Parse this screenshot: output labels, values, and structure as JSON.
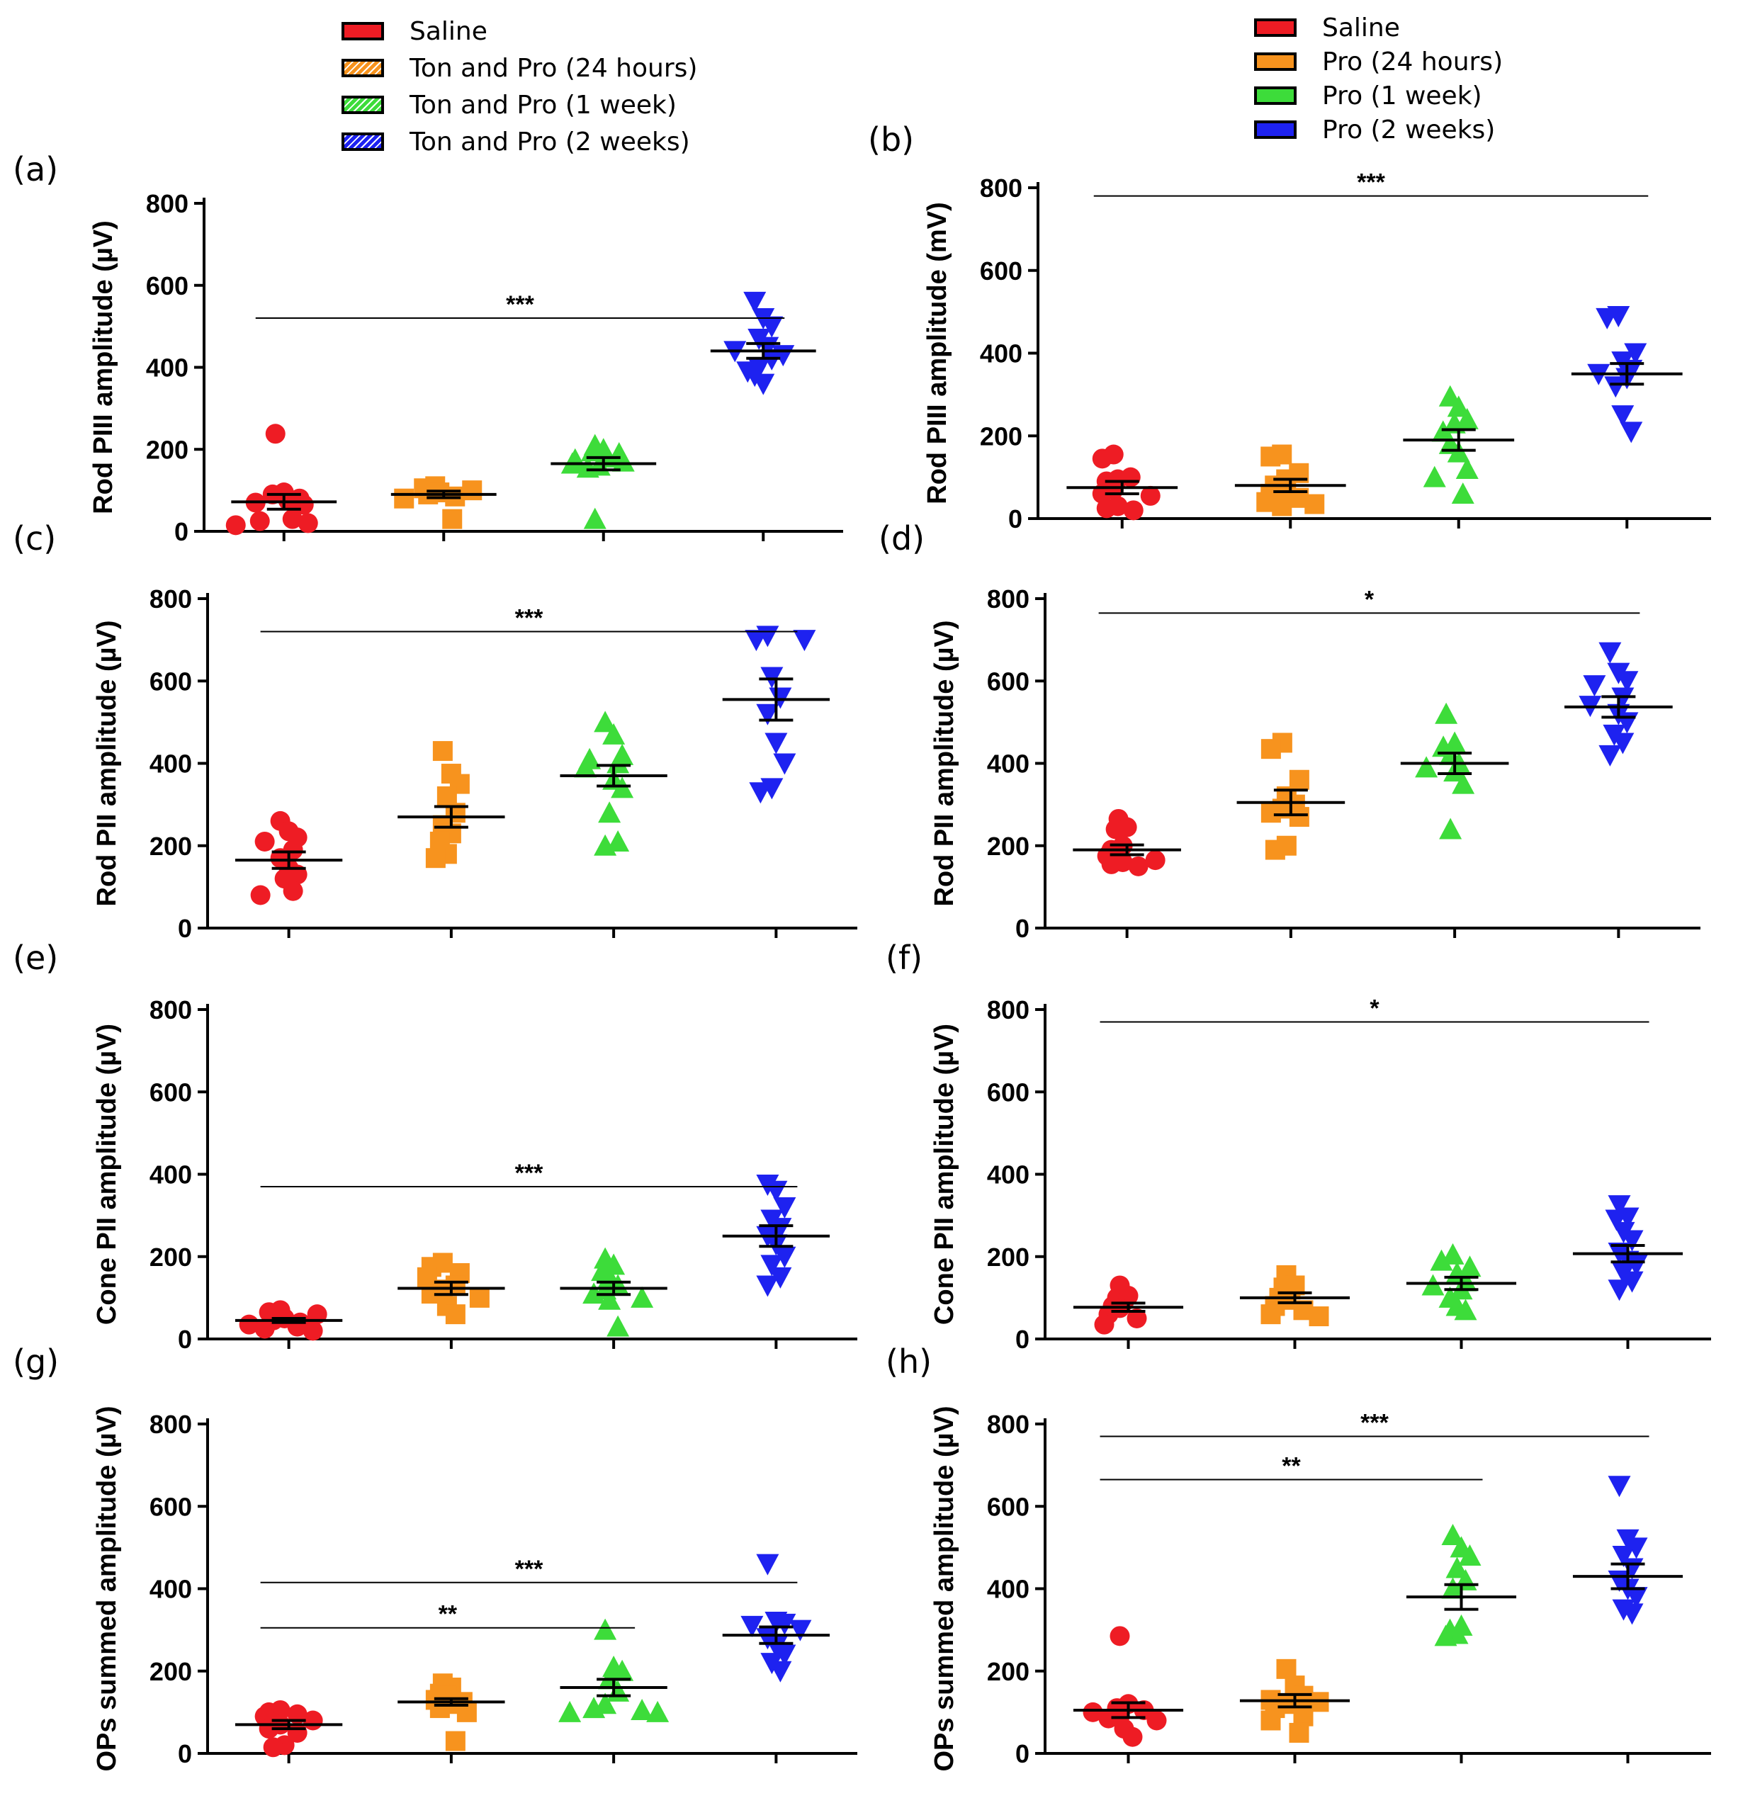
{
  "legends": {
    "left": {
      "items": [
        {
          "label": "Saline",
          "color": "#ee1c24",
          "hatched": false
        },
        {
          "label": "Ton and Pro (24 hours)",
          "color": "#f7931e",
          "hatched": true
        },
        {
          "label": "Ton and Pro (1 week)",
          "color": "#3ddc3a",
          "hatched": true
        },
        {
          "label": "Ton and Pro (2 weeks)",
          "color": "#1e22f0",
          "hatched": true
        }
      ]
    },
    "right": {
      "items": [
        {
          "label": "Saline",
          "color": "#ee1c24",
          "hatched": false
        },
        {
          "label": "Pro (24 hours)",
          "color": "#f7931e",
          "hatched": false
        },
        {
          "label": "Pro (1 week)",
          "color": "#3ddc3a",
          "hatched": false
        },
        {
          "label": "Pro (2 weeks)",
          "color": "#1e22f0",
          "hatched": false
        }
      ]
    }
  },
  "chart_data": [
    {
      "panel": "(a)",
      "type": "scatter",
      "ylabel": "Rod PIII amplitude (µV)",
      "ylim": [
        0,
        800
      ],
      "yticks": [
        0,
        200,
        400,
        600,
        800
      ],
      "groups": [
        {
          "name": "Saline",
          "marker": "circle",
          "color": "#ee1c24",
          "mean": 72,
          "sem": 18,
          "values": [
            238,
            95,
            90,
            80,
            75,
            70,
            65,
            30,
            25,
            20,
            15
          ]
        },
        {
          "name": "Ton and Pro (24 hours)",
          "marker": "square",
          "color": "#f7931e",
          "mean": 90,
          "sem": 8,
          "values": [
            110,
            105,
            100,
            95,
            90,
            85,
            80,
            30
          ]
        },
        {
          "name": "Ton and Pro (1 week)",
          "marker": "triangle-up",
          "color": "#3ddc3a",
          "mean": 165,
          "sem": 15,
          "values": [
            210,
            200,
            195,
            190,
            180,
            175,
            170,
            165,
            160,
            155,
            30
          ]
        },
        {
          "name": "Ton and Pro (2 weeks)",
          "marker": "triangle-down",
          "color": "#1e22f0",
          "mean": 440,
          "sem": 18,
          "values": [
            560,
            520,
            500,
            470,
            450,
            440,
            430,
            420,
            400,
            390,
            380,
            360
          ]
        }
      ],
      "significance": [
        {
          "from": 0,
          "to": 3,
          "label": "***",
          "y": 520
        }
      ]
    },
    {
      "panel": "(b)",
      "type": "scatter",
      "ylabel": "Rod PIII amplitude (mV)",
      "ylim": [
        0,
        800
      ],
      "yticks": [
        0,
        200,
        400,
        600,
        800
      ],
      "groups": [
        {
          "name": "Saline",
          "marker": "circle",
          "color": "#ee1c24",
          "mean": 75,
          "sem": 15,
          "values": [
            155,
            145,
            100,
            95,
            90,
            70,
            60,
            55,
            30,
            25,
            20
          ]
        },
        {
          "name": "Pro (24 hours)",
          "marker": "square",
          "color": "#f7931e",
          "mean": 80,
          "sem": 15,
          "values": [
            155,
            150,
            110,
            95,
            80,
            70,
            60,
            50,
            40,
            35,
            30
          ]
        },
        {
          "name": "Pro (1 week)",
          "marker": "triangle-up",
          "color": "#3ddc3a",
          "mean": 190,
          "sem": 25,
          "values": [
            295,
            270,
            240,
            230,
            210,
            180,
            160,
            120,
            100,
            60
          ]
        },
        {
          "name": "Pro (2 weeks)",
          "marker": "triangle-down",
          "color": "#1e22f0",
          "mean": 350,
          "sem": 25,
          "values": [
            490,
            485,
            400,
            380,
            360,
            350,
            340,
            320,
            250,
            210
          ]
        }
      ],
      "significance": [
        {
          "from": 0,
          "to": 3,
          "label": "***",
          "y": 780
        }
      ]
    },
    {
      "panel": "(c)",
      "type": "scatter",
      "ylabel": "Rod PII amplitude (µV)",
      "ylim": [
        0,
        800
      ],
      "yticks": [
        0,
        200,
        400,
        600,
        800
      ],
      "groups": [
        {
          "name": "Saline",
          "marker": "circle",
          "color": "#ee1c24",
          "mean": 165,
          "sem": 20,
          "values": [
            260,
            235,
            220,
            210,
            190,
            170,
            145,
            130,
            120,
            90,
            80
          ]
        },
        {
          "name": "Ton and Pro (24 hours)",
          "marker": "square",
          "color": "#f7931e",
          "mean": 270,
          "sem": 25,
          "values": [
            430,
            375,
            350,
            320,
            280,
            250,
            230,
            210,
            180,
            170
          ]
        },
        {
          "name": "Ton and Pro (1 week)",
          "marker": "triangle-up",
          "color": "#3ddc3a",
          "mean": 370,
          "sem": 25,
          "values": [
            500,
            470,
            420,
            410,
            400,
            390,
            360,
            340,
            280,
            210,
            200
          ]
        },
        {
          "name": "Ton and Pro (2 weeks)",
          "marker": "triangle-down",
          "color": "#1e22f0",
          "mean": 555,
          "sem": 50,
          "values": [
            710,
            700,
            700,
            610,
            560,
            520,
            450,
            400,
            340,
            330
          ]
        }
      ],
      "significance": [
        {
          "from": 0,
          "to": 3,
          "label": "***",
          "y": 720
        }
      ]
    },
    {
      "panel": "(d)",
      "type": "scatter",
      "ylabel": "Rod PII amplitude (µV)",
      "ylim": [
        0,
        800
      ],
      "yticks": [
        0,
        200,
        400,
        600,
        800
      ],
      "groups": [
        {
          "name": "Saline",
          "marker": "circle",
          "color": "#ee1c24",
          "mean": 190,
          "sem": 12,
          "values": [
            265,
            245,
            240,
            200,
            190,
            185,
            175,
            165,
            160,
            155,
            150
          ]
        },
        {
          "name": "Pro (24 hours)",
          "marker": "square",
          "color": "#f7931e",
          "mean": 305,
          "sem": 30,
          "values": [
            450,
            435,
            360,
            320,
            300,
            290,
            280,
            270,
            200,
            190
          ]
        },
        {
          "name": "Pro (1 week)",
          "marker": "triangle-up",
          "color": "#3ddc3a",
          "mean": 400,
          "sem": 25,
          "values": [
            520,
            450,
            440,
            420,
            400,
            390,
            380,
            350,
            240
          ]
        },
        {
          "name": "Pro (2 weeks)",
          "marker": "triangle-down",
          "color": "#1e22f0",
          "mean": 537,
          "sem": 25,
          "values": [
            670,
            620,
            600,
            590,
            560,
            540,
            520,
            500,
            470,
            450,
            420
          ]
        }
      ],
      "significance": [
        {
          "from": 0,
          "to": 3,
          "label": "*",
          "y": 765
        }
      ]
    },
    {
      "panel": "(e)",
      "type": "scatter",
      "ylabel": "Cone PII amplitude (µV)",
      "ylim": [
        0,
        800
      ],
      "yticks": [
        0,
        200,
        400,
        600,
        800
      ],
      "groups": [
        {
          "name": "Saline",
          "marker": "circle",
          "color": "#ee1c24",
          "mean": 45,
          "sem": 5,
          "values": [
            70,
            65,
            60,
            50,
            45,
            40,
            35,
            30,
            25,
            20
          ]
        },
        {
          "name": "Ton and Pro (24 hours)",
          "marker": "square",
          "color": "#f7931e",
          "mean": 123,
          "sem": 15,
          "values": [
            185,
            175,
            160,
            150,
            130,
            120,
            110,
            100,
            80,
            60
          ]
        },
        {
          "name": "Ton and Pro (1 week)",
          "marker": "triangle-up",
          "color": "#3ddc3a",
          "mean": 123,
          "sem": 15,
          "values": [
            195,
            180,
            165,
            150,
            130,
            120,
            110,
            100,
            95,
            30
          ]
        },
        {
          "name": "Ton and Pro (2 weeks)",
          "marker": "triangle-down",
          "color": "#1e22f0",
          "mean": 250,
          "sem": 25,
          "values": [
            375,
            360,
            320,
            290,
            270,
            250,
            230,
            200,
            180,
            150,
            130
          ]
        }
      ],
      "significance": [
        {
          "from": 0,
          "to": 3,
          "label": "***",
          "y": 370
        }
      ]
    },
    {
      "panel": "(f)",
      "type": "scatter",
      "ylabel": "Cone PII amplitude (µV)",
      "ylim": [
        0,
        800
      ],
      "yticks": [
        0,
        200,
        400,
        600,
        800
      ],
      "groups": [
        {
          "name": "Saline",
          "marker": "circle",
          "color": "#ee1c24",
          "mean": 77,
          "sem": 10,
          "values": [
            130,
            105,
            100,
            90,
            80,
            75,
            60,
            50,
            35
          ]
        },
        {
          "name": "Pro (24 hours)",
          "marker": "square",
          "color": "#f7931e",
          "mean": 100,
          "sem": 12,
          "values": [
            155,
            130,
            125,
            120,
            100,
            95,
            80,
            70,
            60,
            55
          ]
        },
        {
          "name": "Pro (1 week)",
          "marker": "triangle-up",
          "color": "#3ddc3a",
          "mean": 135,
          "sem": 15,
          "values": [
            205,
            190,
            175,
            160,
            140,
            130,
            120,
            100,
            80,
            70
          ]
        },
        {
          "name": "Pro (2 weeks)",
          "marker": "triangle-down",
          "color": "#1e22f0",
          "mean": 207,
          "sem": 20,
          "values": [
            325,
            295,
            290,
            260,
            240,
            210,
            190,
            180,
            160,
            140,
            120
          ]
        }
      ],
      "significance": [
        {
          "from": 0,
          "to": 3,
          "label": "*",
          "y": 770
        }
      ]
    },
    {
      "panel": "(g)",
      "type": "scatter",
      "ylabel": "OPs summed amplitude (µV)",
      "ylim": [
        0,
        800
      ],
      "yticks": [
        0,
        200,
        400,
        600,
        800
      ],
      "groups": [
        {
          "name": "Saline",
          "marker": "circle",
          "color": "#ee1c24",
          "mean": 70,
          "sem": 10,
          "values": [
            105,
            100,
            95,
            90,
            80,
            70,
            60,
            50,
            20,
            15
          ]
        },
        {
          "name": "Ton and Pro (24 hours)",
          "marker": "square",
          "color": "#f7931e",
          "mean": 125,
          "sem": 8,
          "values": [
            170,
            160,
            145,
            140,
            130,
            125,
            120,
            110,
            100,
            30
          ]
        },
        {
          "name": "Ton and Pro (1 week)",
          "marker": "triangle-up",
          "color": "#3ddc3a",
          "mean": 160,
          "sem": 20,
          "values": [
            300,
            210,
            200,
            180,
            150,
            120,
            110,
            105,
            100,
            100
          ]
        },
        {
          "name": "Ton and Pro (2 weeks)",
          "marker": "triangle-down",
          "color": "#1e22f0",
          "mean": 287,
          "sem": 20,
          "values": [
            460,
            320,
            315,
            310,
            300,
            280,
            260,
            240,
            220,
            200
          ]
        }
      ],
      "significance": [
        {
          "from": 0,
          "to": 3,
          "label": "***",
          "y": 415
        },
        {
          "from": 0,
          "to": 2,
          "label": "**",
          "y": 305
        }
      ]
    },
    {
      "panel": "(h)",
      "type": "scatter",
      "ylabel": "OPs summed amplitude (µV)",
      "ylim": [
        0,
        800
      ],
      "yticks": [
        0,
        200,
        400,
        600,
        800
      ],
      "groups": [
        {
          "name": "Saline",
          "marker": "circle",
          "color": "#ee1c24",
          "mean": 105,
          "sem": 18,
          "values": [
            285,
            120,
            110,
            105,
            100,
            90,
            85,
            80,
            60,
            40
          ]
        },
        {
          "name": "Pro (24 hours)",
          "marker": "square",
          "color": "#f7931e",
          "mean": 128,
          "sem": 15,
          "values": [
            205,
            165,
            140,
            130,
            125,
            120,
            110,
            90,
            80,
            50
          ]
        },
        {
          "name": "Pro (1 week)",
          "marker": "triangle-up",
          "color": "#3ddc3a",
          "mean": 380,
          "sem": 30,
          "values": [
            530,
            500,
            480,
            450,
            420,
            400,
            310,
            300,
            290,
            285
          ]
        },
        {
          "name": "Pro (2 weeks)",
          "marker": "triangle-down",
          "color": "#1e22f0",
          "mean": 430,
          "sem": 30,
          "values": [
            650,
            520,
            500,
            480,
            450,
            420,
            400,
            380,
            350,
            340
          ]
        }
      ],
      "significance": [
        {
          "from": 0,
          "to": 3,
          "label": "***",
          "y": 770
        },
        {
          "from": 0,
          "to": 2,
          "label": "**",
          "y": 665
        }
      ]
    }
  ]
}
